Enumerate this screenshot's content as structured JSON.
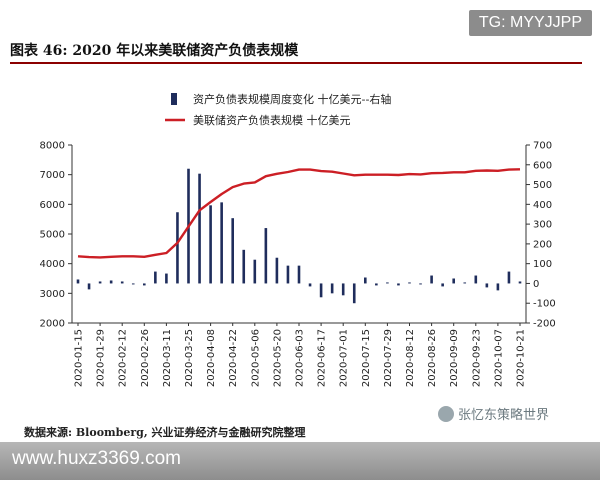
{
  "header": {
    "title": "图表 46: 2020 年以来美联储资产负债表规模"
  },
  "watermark": {
    "tg": "TG: MYYJJPP",
    "url": "www.huxz3369.com",
    "account": "张忆东策略世界"
  },
  "source": "数据来源: Bloomberg, 兴业证券经济与金融研究院整理",
  "chart_data": {
    "type": "bar+line",
    "title": "",
    "x": [
      "2020-01-15",
      "2020-01-22",
      "2020-01-29",
      "2020-02-05",
      "2020-02-12",
      "2020-02-19",
      "2020-02-26",
      "2020-03-04",
      "2020-03-11",
      "2020-03-18",
      "2020-03-25",
      "2020-04-01",
      "2020-04-08",
      "2020-04-15",
      "2020-04-22",
      "2020-04-29",
      "2020-05-06",
      "2020-05-13",
      "2020-05-20",
      "2020-05-27",
      "2020-06-03",
      "2020-06-10",
      "2020-06-17",
      "2020-06-24",
      "2020-07-01",
      "2020-07-08",
      "2020-07-15",
      "2020-07-22",
      "2020-07-29",
      "2020-08-05",
      "2020-08-12",
      "2020-08-19",
      "2020-08-26",
      "2020-09-02",
      "2020-09-09",
      "2020-09-16",
      "2020-09-23",
      "2020-09-30",
      "2020-10-07",
      "2020-10-14",
      "2020-10-21"
    ],
    "x_tick_labels": [
      "2020-01-15",
      "2020-01-29",
      "2020-02-12",
      "2020-02-26",
      "2020-03-11",
      "2020-03-25",
      "2020-04-08",
      "2020-04-22",
      "2020-05-06",
      "2020-05-20",
      "2020-06-03",
      "2020-06-17",
      "2020-07-01",
      "2020-07-15",
      "2020-07-29",
      "2020-08-12",
      "2020-08-26",
      "2020-09-09",
      "2020-09-23",
      "2020-10-07",
      "2020-10-21"
    ],
    "series": [
      {
        "name": "资产负债表规模周度变化 十亿美元--右轴",
        "kind": "bar",
        "axis": "right",
        "color": "#1f2d5c",
        "values": [
          20,
          -30,
          10,
          15,
          10,
          -5,
          -10,
          60,
          50,
          360,
          580,
          555,
          395,
          410,
          330,
          170,
          120,
          280,
          130,
          90,
          90,
          -15,
          -70,
          -50,
          -60,
          -100,
          30,
          -10,
          5,
          -10,
          5,
          -5,
          40,
          -15,
          25,
          5,
          40,
          -20,
          -35,
          60,
          10
        ]
      },
      {
        "name": "美联储资产负债表规模 十亿美元",
        "kind": "line",
        "axis": "left",
        "color": "#cc1f25",
        "values": [
          4250,
          4220,
          4210,
          4230,
          4250,
          4250,
          4230,
          4300,
          4360,
          4700,
          5250,
          5800,
          6080,
          6350,
          6580,
          6700,
          6740,
          6950,
          7030,
          7090,
          7170,
          7170,
          7120,
          7100,
          7040,
          6980,
          7000,
          7000,
          7000,
          6990,
          7020,
          7010,
          7050,
          7060,
          7080,
          7080,
          7130,
          7140,
          7130,
          7170,
          7180
        ]
      }
    ],
    "y_left": {
      "ticks": [
        2000,
        3000,
        4000,
        5000,
        6000,
        7000,
        8000
      ],
      "ylim": [
        2000,
        8000
      ]
    },
    "y_right": {
      "ticks": [
        -200,
        -100,
        0,
        100,
        200,
        300,
        400,
        500,
        600,
        700
      ],
      "ylim": [
        -200,
        700
      ]
    },
    "legend": "top-center",
    "grid": false
  }
}
